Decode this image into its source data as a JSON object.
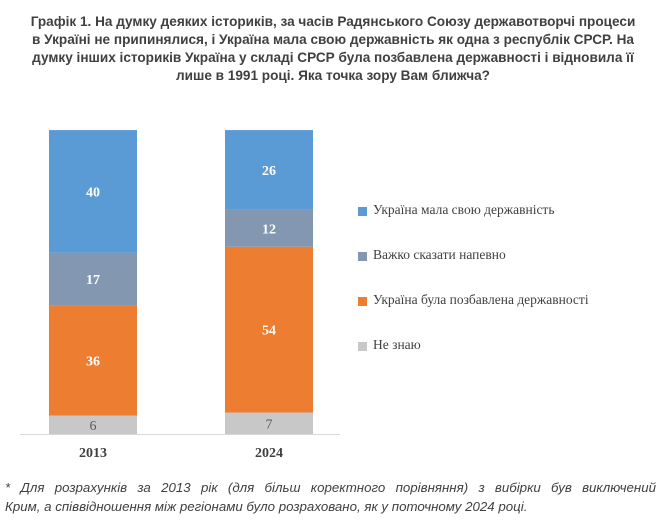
{
  "title_lines": [
    "Графік 1. На думку деяких істориків, за часів Радянського Союзу державотворчі процеси",
    "в Україні не припинялися, і Україна мала свою державність як одна з республік СРСР. На",
    "думку інших істориків Україна у складі СРСР була позбавлена державності і відновила її",
    "лише в 1991 році. Яка точка зору Вам ближча?"
  ],
  "chart_data": {
    "type": "bar",
    "stacked": true,
    "categories": [
      "2013",
      "2024"
    ],
    "series": [
      {
        "name": "Не знаю",
        "values": [
          6,
          7
        ],
        "color": "#c8c8c8",
        "label_color": "#595959"
      },
      {
        "name": "Україна була позбавлена державності",
        "values": [
          36,
          54
        ],
        "color": "#ed7d31",
        "label_color": "#ffffff"
      },
      {
        "name": "Важко сказати напевно",
        "values": [
          17,
          12
        ],
        "color": "#8497b0",
        "label_color": "#ffffff"
      },
      {
        "name": "Україна мала свою державність",
        "values": [
          40,
          26
        ],
        "color": "#5b9bd5",
        "label_color": "#ffffff"
      }
    ],
    "legend_order": [
      "Україна мала свою державність",
      "Важко сказати напевно",
      "Україна була позбавлена державності",
      "Не знаю"
    ],
    "ylim": [
      0,
      100
    ],
    "legend_position": "right"
  },
  "footnote": {
    "line1": "* Для розрахунків за 2013 рік (для більш коректного порівняння) з вибірки був виключений",
    "line2": "Крим, а співвідношення між регіонами було розраховано, як у поточному 2024 році."
  }
}
